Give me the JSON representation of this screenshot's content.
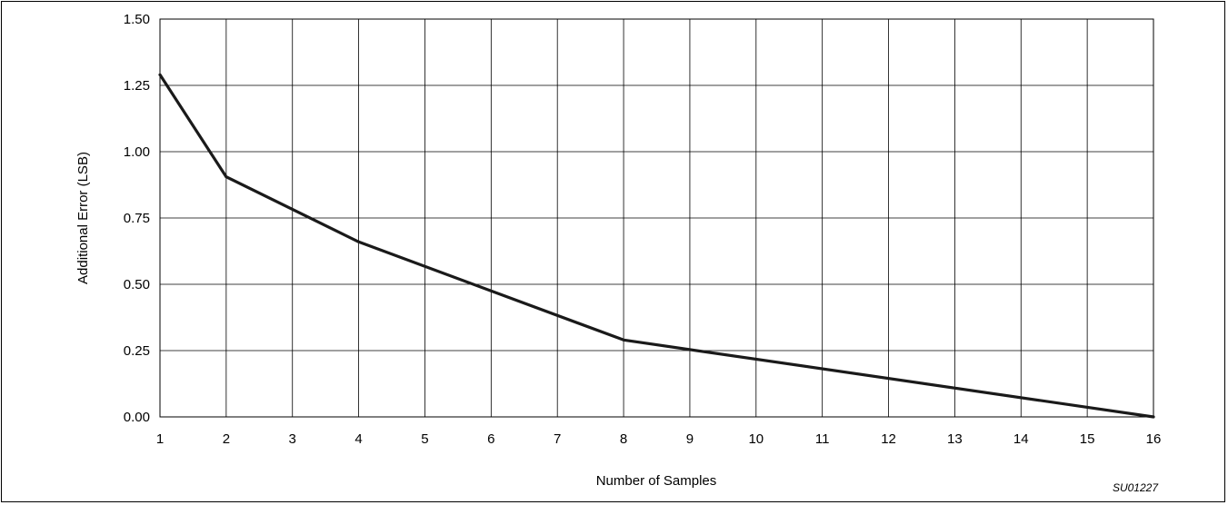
{
  "chart_data": {
    "type": "line",
    "title": "",
    "xlabel": "Number of Samples",
    "ylabel": "Additional Error (LSB)",
    "figure_id": "SU01227",
    "x_ticks": [
      "1",
      "2",
      "3",
      "4",
      "5",
      "6",
      "7",
      "8",
      "9",
      "10",
      "11",
      "12",
      "13",
      "14",
      "15",
      "16"
    ],
    "y_ticks": [
      "0.00",
      "0.25",
      "0.50",
      "0.75",
      "1.00",
      "1.25",
      "1.50"
    ],
    "xlim": [
      1,
      16
    ],
    "ylim": [
      0,
      1.5
    ],
    "grid": true,
    "legend": "none",
    "series": [
      {
        "x": [
          1,
          2,
          4,
          8,
          16
        ],
        "y": [
          1.29,
          0.905,
          0.66,
          0.29,
          0.0
        ]
      }
    ],
    "colors": {
      "line": "#1a1a1a",
      "grid": "#000000",
      "background": "#ffffff"
    }
  }
}
